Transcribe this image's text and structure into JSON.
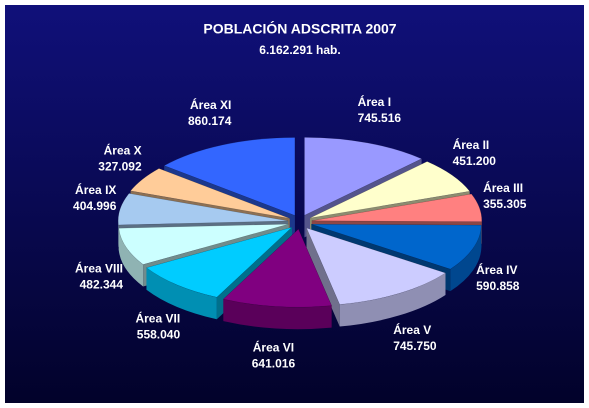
{
  "chart_data": {
    "type": "pie",
    "title": "POBLACIÓN ADSCRITA 2007",
    "subtitle": "6.162.291 hab.",
    "categories": [
      "Área I",
      "Área II",
      "Área III",
      "Área IV",
      "Área V",
      "Área VI",
      "Área VII",
      "Área VIII",
      "Área IX",
      "Área X",
      "Área XI"
    ],
    "values": [
      745516,
      451200,
      355305,
      590858,
      745750,
      641016,
      558040,
      482344,
      404996,
      327092,
      860174
    ],
    "value_labels": [
      "745.516",
      "451.200",
      "355.305",
      "590.858",
      "745.750",
      "641.016",
      "558.040",
      "482.344",
      "404.996",
      "327.092",
      "860.174"
    ],
    "colors": [
      "#9999ff",
      "#ffffcc",
      "#ff8080",
      "#0066cc",
      "#ccccff",
      "#800080",
      "#00ccff",
      "#ccffff",
      "#a6caf0",
      "#ffcc99",
      "#3366ff"
    ]
  }
}
